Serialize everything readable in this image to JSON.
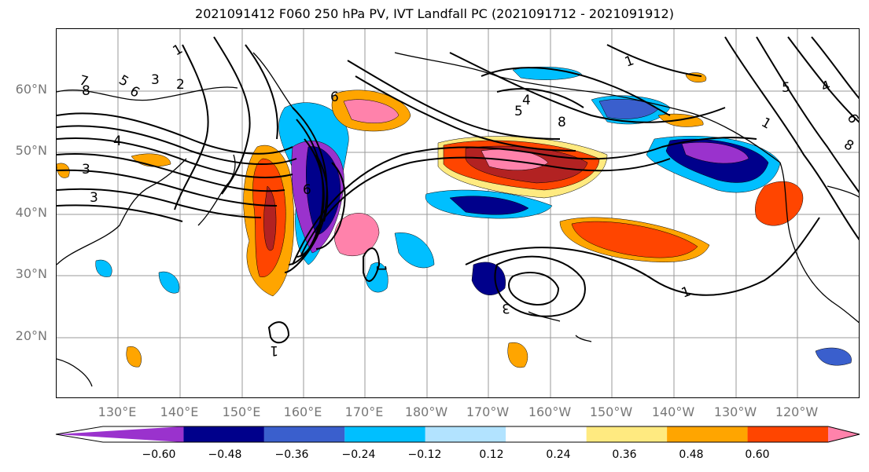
{
  "title": "2021091412 F060 250 hPa PV, IVT Landfall PC (2021091712 - 2021091912)",
  "latitude_labels": [
    "60°N",
    "50°N",
    "40°N",
    "30°N",
    "20°N"
  ],
  "longitude_labels": [
    "130°E",
    "140°E",
    "150°E",
    "160°E",
    "170°E",
    "180°W",
    "170°W",
    "160°W",
    "150°W",
    "140°W",
    "130°W",
    "120°W"
  ],
  "colorbar": {
    "tick_labels": [
      "−0.60",
      "−0.48",
      "−0.36",
      "−0.24",
      "−0.12",
      "0.12",
      "0.24",
      "0.36",
      "0.48",
      "0.60"
    ],
    "colors": [
      "#9a32cd",
      "#00008b",
      "#3a5fcd",
      "#00bfff",
      "#b2e3ff",
      "#ffffff",
      "#ffea80",
      "#ffa500",
      "#ff4500",
      "#b22222",
      "#ff82ab"
    ]
  },
  "contour_labels": [
    "1",
    "2",
    "3",
    "5",
    "6",
    "7",
    "8",
    "4",
    "6",
    "5",
    "4",
    "8",
    "1",
    "3",
    "6",
    "1",
    "4",
    "5",
    "8",
    "1",
    "3",
    "1",
    "6",
    "1",
    "3"
  ]
}
